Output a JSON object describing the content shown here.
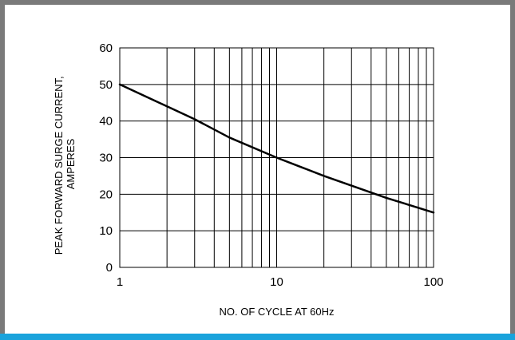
{
  "chart_data": {
    "type": "line",
    "title": "",
    "xlabel": "NO. OF CYCLE AT 60Hz",
    "ylabel": [
      "PEAK FORWARD SURGE CURRENT,",
      "AMPERES"
    ],
    "x_scale": "log",
    "xlim": [
      1,
      100
    ],
    "ylim": [
      0,
      60
    ],
    "x_ticks": [
      1,
      10,
      100
    ],
    "x_tick_labels": [
      "1",
      "10",
      "100"
    ],
    "y_ticks": [
      0,
      10,
      20,
      30,
      40,
      50,
      60
    ],
    "y_tick_labels": [
      "0",
      "10",
      "20",
      "30",
      "40",
      "50",
      "60"
    ],
    "grid": true,
    "series": [
      {
        "x": [
          1,
          2,
          3,
          5,
          10,
          20,
          50,
          100
        ],
        "y": [
          50,
          44,
          40.5,
          35.5,
          30,
          25,
          19,
          15
        ]
      }
    ]
  },
  "colors": {
    "frame": "#7a7a7a",
    "accent_bar": "#1aa3dc",
    "line": "#000000"
  }
}
